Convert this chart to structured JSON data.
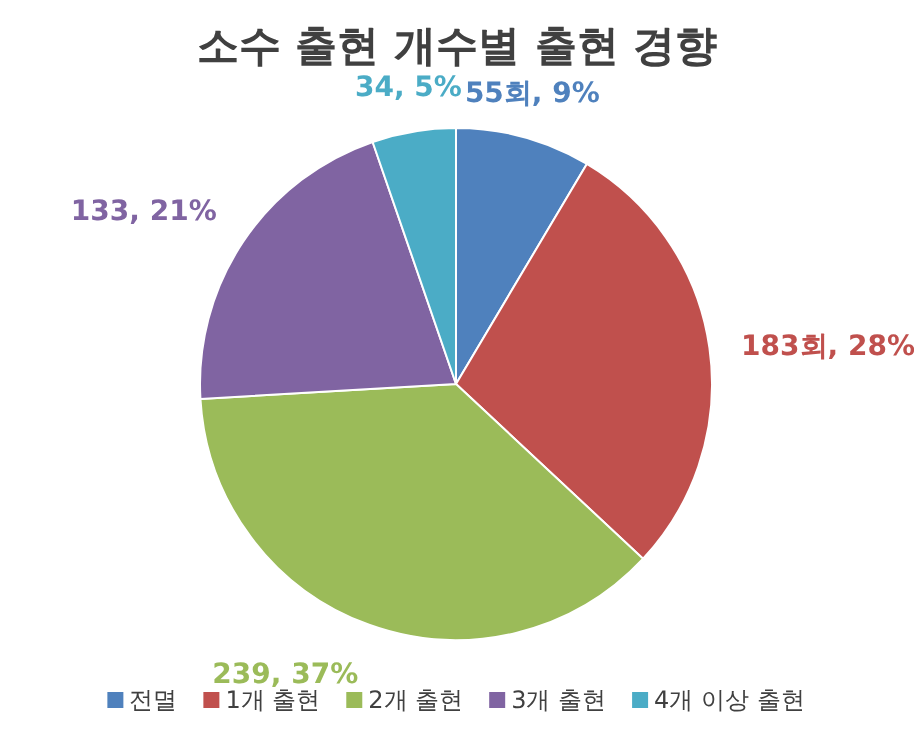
{
  "chart_data": {
    "type": "pie",
    "title": "소수 출현 개수별 출현 경향",
    "categories": [
      "전멸",
      "1개 출현",
      "2개 출현",
      "3개 출현",
      "4개 이상 출현"
    ],
    "values": [
      55,
      183,
      239,
      133,
      34
    ],
    "value_labels": [
      "55회, 9%",
      "183회, 28%",
      "239, 37%",
      "133, 21%",
      "34, 5%"
    ],
    "colors": [
      "#4f81bd",
      "#c0504d",
      "#9bbb59",
      "#8064a2",
      "#4bacc6"
    ],
    "legend": "bottom"
  }
}
